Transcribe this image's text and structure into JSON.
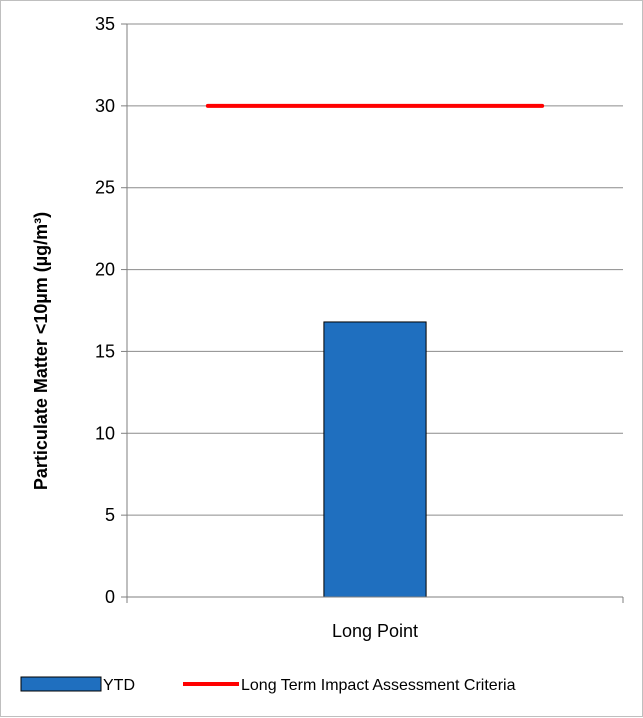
{
  "chart_data": {
    "type": "bar",
    "title": "",
    "xlabel": "",
    "ylabel": "Particulate Matter <10µm (µg/m³)",
    "categories": [
      "Long Point"
    ],
    "ylim": [
      0,
      35
    ],
    "yticks": [
      0,
      5,
      10,
      15,
      20,
      25,
      30,
      35
    ],
    "grid": true,
    "legend_position": "bottom",
    "series": [
      {
        "name": "YTD",
        "type": "bar",
        "values": [
          16.8
        ],
        "color": "#1f6fbf"
      },
      {
        "name": "Long Term Impact Assessment Criteria",
        "type": "line",
        "values": [
          30
        ],
        "color": "#ff0000"
      }
    ]
  }
}
